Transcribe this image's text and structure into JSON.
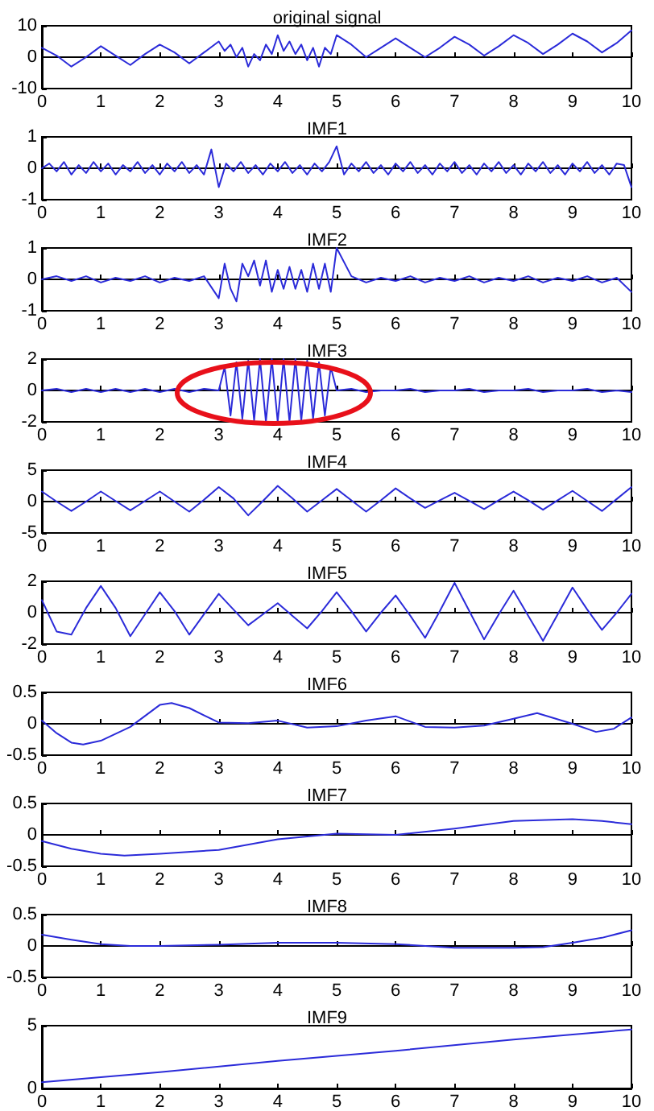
{
  "chart_data": [
    {
      "type": "line",
      "title": "original signal",
      "color": "#2b2bd9",
      "xlim": [
        0,
        10
      ],
      "xticks": [
        0,
        1,
        2,
        3,
        4,
        5,
        6,
        7,
        8,
        9,
        10
      ],
      "ylim": [
        -10,
        10
      ],
      "yticks": [
        -10,
        0,
        10
      ],
      "x": [
        0,
        0.25,
        0.5,
        0.75,
        1,
        1.25,
        1.5,
        1.75,
        2,
        2.25,
        2.5,
        2.75,
        3,
        3.1,
        3.2,
        3.3,
        3.4,
        3.5,
        3.6,
        3.7,
        3.8,
        3.9,
        4,
        4.1,
        4.2,
        4.3,
        4.4,
        4.5,
        4.6,
        4.7,
        4.8,
        4.9,
        5,
        5.25,
        5.5,
        5.75,
        6,
        6.25,
        6.5,
        6.75,
        7,
        7.25,
        7.5,
        7.75,
        8,
        8.25,
        8.5,
        8.75,
        9,
        9.25,
        9.5,
        9.75,
        10
      ],
      "values": [
        3,
        0.5,
        -3,
        0,
        3.5,
        0.5,
        -2.5,
        1,
        4,
        1.5,
        -2,
        1.5,
        5,
        2,
        4,
        0,
        3,
        -3,
        1,
        -1,
        4,
        1,
        7,
        2,
        5,
        1,
        4,
        -1,
        3,
        -3,
        3,
        1,
        7,
        4,
        0,
        3,
        6,
        3,
        0,
        3,
        6.5,
        4,
        0.5,
        3.5,
        7,
        4.5,
        1,
        4,
        7.5,
        5,
        1.5,
        4.5,
        8.5
      ]
    },
    {
      "type": "line",
      "title": "IMF1",
      "color": "#2b2bd9",
      "xlim": [
        0,
        10
      ],
      "xticks": [
        0,
        1,
        2,
        3,
        4,
        5,
        6,
        7,
        8,
        9,
        10
      ],
      "ylim": [
        -1,
        1
      ],
      "yticks": [
        -1,
        0,
        1
      ],
      "x": [
        0,
        0.125,
        0.25,
        0.375,
        0.5,
        0.625,
        0.75,
        0.875,
        1,
        1.125,
        1.25,
        1.375,
        1.5,
        1.625,
        1.75,
        1.875,
        2,
        2.125,
        2.25,
        2.375,
        2.5,
        2.625,
        2.75,
        2.875,
        3,
        3.125,
        3.25,
        3.375,
        3.5,
        3.625,
        3.75,
        3.875,
        4,
        4.125,
        4.25,
        4.375,
        4.5,
        4.625,
        4.75,
        4.875,
        5,
        5.125,
        5.25,
        5.375,
        5.5,
        5.625,
        5.75,
        5.875,
        6,
        6.125,
        6.25,
        6.375,
        6.5,
        6.625,
        6.75,
        6.875,
        7,
        7.125,
        7.25,
        7.375,
        7.5,
        7.625,
        7.75,
        7.875,
        8,
        8.125,
        8.25,
        8.375,
        8.5,
        8.625,
        8.75,
        8.875,
        9,
        9.125,
        9.25,
        9.375,
        9.5,
        9.625,
        9.75,
        9.875,
        10
      ],
      "values": [
        0,
        0.15,
        -0.1,
        0.2,
        -0.2,
        0.1,
        -0.15,
        0.2,
        -0.1,
        0.15,
        -0.2,
        0.1,
        -0.1,
        0.2,
        -0.15,
        0.1,
        -0.2,
        0.15,
        -0.1,
        0.2,
        -0.15,
        0.1,
        -0.2,
        0.6,
        -0.6,
        0.15,
        -0.1,
        0.2,
        -0.15,
        0.1,
        -0.2,
        0.15,
        -0.1,
        0.2,
        -0.15,
        0.1,
        -0.2,
        0.15,
        -0.1,
        0.2,
        0.7,
        -0.2,
        0.15,
        -0.1,
        0.2,
        -0.15,
        0.1,
        -0.2,
        0.15,
        -0.1,
        0.2,
        -0.15,
        0.1,
        -0.2,
        0.15,
        -0.1,
        0.2,
        -0.15,
        0.1,
        -0.2,
        0.15,
        -0.1,
        0.2,
        -0.15,
        0.1,
        -0.2,
        0.15,
        -0.1,
        0.2,
        -0.15,
        0.1,
        -0.2,
        0.15,
        -0.1,
        0.2,
        -0.15,
        0.1,
        -0.2,
        0.15,
        0.1,
        -0.6
      ]
    },
    {
      "type": "line",
      "title": "IMF2",
      "color": "#2b2bd9",
      "xlim": [
        0,
        10
      ],
      "xticks": [
        0,
        1,
        2,
        3,
        4,
        5,
        6,
        7,
        8,
        9,
        10
      ],
      "ylim": [
        -1,
        1
      ],
      "yticks": [
        -1,
        0,
        1
      ],
      "x": [
        0,
        0.25,
        0.5,
        0.75,
        1,
        1.25,
        1.5,
        1.75,
        2,
        2.25,
        2.5,
        2.75,
        3,
        3.1,
        3.2,
        3.3,
        3.4,
        3.5,
        3.6,
        3.7,
        3.8,
        3.9,
        4,
        4.1,
        4.2,
        4.3,
        4.4,
        4.5,
        4.6,
        4.7,
        4.8,
        4.9,
        5,
        5.25,
        5.5,
        5.75,
        6,
        6.25,
        6.5,
        6.75,
        7,
        7.25,
        7.5,
        7.75,
        8,
        8.25,
        8.5,
        8.75,
        9,
        9.25,
        9.5,
        9.75,
        10
      ],
      "values": [
        0,
        0.1,
        -0.05,
        0.1,
        -0.1,
        0.05,
        -0.05,
        0.1,
        -0.1,
        0.05,
        -0.05,
        0.1,
        -0.6,
        0.5,
        -0.3,
        -0.7,
        0.5,
        0.1,
        0.6,
        -0.2,
        0.6,
        -0.4,
        0.3,
        -0.3,
        0.4,
        -0.3,
        0.3,
        -0.4,
        0.5,
        -0.3,
        0.5,
        -0.4,
        1,
        0.1,
        -0.1,
        0.05,
        -0.05,
        0.1,
        -0.1,
        0.05,
        -0.05,
        0.1,
        -0.1,
        0.05,
        -0.05,
        0.1,
        -0.1,
        0.05,
        -0.05,
        0.1,
        -0.1,
        0.05,
        -0.4
      ]
    },
    {
      "type": "line",
      "title": "IMF3",
      "color": "#2b2bd9",
      "xlim": [
        0,
        10
      ],
      "xticks": [
        0,
        1,
        2,
        3,
        4,
        5,
        6,
        7,
        8,
        9,
        10
      ],
      "ylim": [
        -2,
        2
      ],
      "yticks": [
        -2,
        0,
        2
      ],
      "x": [
        0,
        0.25,
        0.5,
        0.75,
        1,
        1.25,
        1.5,
        1.75,
        2,
        2.25,
        2.5,
        2.75,
        3,
        3.1,
        3.2,
        3.3,
        3.4,
        3.5,
        3.6,
        3.7,
        3.8,
        3.9,
        4,
        4.1,
        4.2,
        4.3,
        4.4,
        4.5,
        4.6,
        4.7,
        4.8,
        4.9,
        5,
        5.25,
        5.5,
        5.75,
        6,
        6.25,
        6.5,
        6.75,
        7,
        7.25,
        7.5,
        7.75,
        8,
        8.25,
        8.5,
        8.75,
        9,
        9.25,
        9.5,
        9.75,
        10
      ],
      "values": [
        0,
        0.1,
        -0.1,
        0.1,
        -0.1,
        0.1,
        -0.1,
        0.1,
        -0.1,
        0.1,
        -0.1,
        0.1,
        0,
        1.5,
        -1.6,
        1.8,
        -1.8,
        1.9,
        -1.9,
        2,
        -2,
        2,
        -2,
        2,
        -2,
        2,
        -1.9,
        1.9,
        -1.8,
        1.8,
        -1.6,
        1.5,
        0,
        0.1,
        -0.1,
        0,
        0,
        0.1,
        -0.1,
        0,
        0,
        0.1,
        -0.1,
        0,
        0,
        0.1,
        -0.1,
        0,
        0,
        0.1,
        -0.1,
        0,
        -0.1
      ]
    },
    {
      "type": "line",
      "title": "IMF4",
      "color": "#2b2bd9",
      "xlim": [
        0,
        10
      ],
      "xticks": [
        0,
        1,
        2,
        3,
        4,
        5,
        6,
        7,
        8,
        9,
        10
      ],
      "ylim": [
        -5,
        5
      ],
      "yticks": [
        -5,
        0,
        5
      ],
      "x": [
        0,
        0.25,
        0.5,
        0.75,
        1,
        1.25,
        1.5,
        1.75,
        2,
        2.25,
        2.5,
        2.75,
        3,
        3.25,
        3.5,
        3.75,
        4,
        4.25,
        4.5,
        4.75,
        5,
        5.25,
        5.5,
        5.75,
        6,
        6.25,
        6.5,
        6.75,
        7,
        7.25,
        7.5,
        7.75,
        8,
        8.25,
        8.5,
        8.75,
        9,
        9.25,
        9.5,
        9.75,
        10
      ],
      "values": [
        1.6,
        0,
        -1.5,
        0,
        1.6,
        0.1,
        -1.4,
        0.1,
        1.6,
        0,
        -1.6,
        0.3,
        2.3,
        0.5,
        -2.2,
        0.1,
        2.5,
        0.5,
        -1.6,
        0.2,
        2,
        0.2,
        -1.6,
        0.2,
        2.1,
        0.5,
        -1,
        0.2,
        1.4,
        0.1,
        -1.2,
        0.2,
        1.6,
        0.2,
        -1.3,
        0.2,
        1.7,
        0.1,
        -1.5,
        0.4,
        2.3
      ]
    },
    {
      "type": "line",
      "title": "IMF5",
      "color": "#2b2bd9",
      "xlim": [
        0,
        10
      ],
      "xticks": [
        0,
        1,
        2,
        3,
        4,
        5,
        6,
        7,
        8,
        9,
        10
      ],
      "ylim": [
        -2,
        2
      ],
      "yticks": [
        -2,
        0,
        2
      ],
      "x": [
        0,
        0.25,
        0.5,
        0.75,
        1,
        1.25,
        1.5,
        1.75,
        2,
        2.25,
        2.5,
        2.75,
        3,
        3.25,
        3.5,
        3.75,
        4,
        4.25,
        4.5,
        4.75,
        5,
        5.25,
        5.5,
        5.75,
        6,
        6.25,
        6.5,
        6.75,
        7,
        7.25,
        7.5,
        7.75,
        8,
        8.25,
        8.5,
        8.75,
        9,
        9.25,
        9.5,
        9.75,
        10
      ],
      "values": [
        0.8,
        -1.2,
        -1.4,
        0.3,
        1.7,
        0.3,
        -1.5,
        -0.1,
        1.3,
        0.1,
        -1.4,
        -0.1,
        1.2,
        0.2,
        -0.8,
        -0.1,
        0.6,
        -0.2,
        -1,
        0.1,
        1.3,
        0.1,
        -1.2,
        0,
        1.1,
        -0.2,
        -1.6,
        0.1,
        1.9,
        0.1,
        -1.7,
        -0.1,
        1.4,
        -0.2,
        -1.8,
        -0.1,
        1.6,
        0.2,
        -1.1,
        0,
        1.2
      ]
    },
    {
      "type": "line",
      "title": "IMF6",
      "color": "#2b2bd9",
      "xlim": [
        0,
        10
      ],
      "xticks": [
        0,
        1,
        2,
        3,
        4,
        5,
        6,
        7,
        8,
        9,
        10
      ],
      "ylim": [
        -0.5,
        0.5
      ],
      "yticks": [
        -0.5,
        0,
        0.5
      ],
      "x": [
        0,
        0.25,
        0.5,
        0.7,
        1,
        1.5,
        2,
        2.2,
        2.5,
        3,
        3.5,
        4,
        4.5,
        5,
        5.5,
        6,
        6.5,
        7,
        7.5,
        8,
        8.4,
        9,
        9.4,
        9.7,
        10
      ],
      "values": [
        0.05,
        -0.15,
        -0.3,
        -0.33,
        -0.27,
        -0.05,
        0.3,
        0.33,
        0.25,
        0.02,
        0.01,
        0.05,
        -0.06,
        -0.04,
        0.05,
        0.12,
        -0.05,
        -0.06,
        -0.03,
        0.08,
        0.17,
        0,
        -0.13,
        -0.08,
        0.1
      ]
    },
    {
      "type": "line",
      "title": "IMF7",
      "color": "#2b2bd9",
      "xlim": [
        0,
        10
      ],
      "xticks": [
        0,
        1,
        2,
        3,
        4,
        5,
        6,
        7,
        8,
        9,
        10
      ],
      "ylim": [
        -0.5,
        0.5
      ],
      "yticks": [
        -0.5,
        0,
        0.5
      ],
      "x": [
        0,
        0.5,
        1,
        1.4,
        2,
        3,
        4,
        5,
        6,
        7,
        8,
        9,
        9.5,
        10
      ],
      "values": [
        -0.1,
        -0.22,
        -0.3,
        -0.33,
        -0.3,
        -0.24,
        -0.07,
        0.02,
        0,
        0.1,
        0.22,
        0.25,
        0.22,
        0.17
      ]
    },
    {
      "type": "line",
      "title": "IMF8",
      "color": "#2b2bd9",
      "xlim": [
        0,
        10
      ],
      "xticks": [
        0,
        1,
        2,
        3,
        4,
        5,
        6,
        7,
        8,
        9,
        10
      ],
      "ylim": [
        -0.5,
        0.5
      ],
      "yticks": [
        -0.5,
        0,
        0.5
      ],
      "x": [
        0,
        0.5,
        1,
        1.5,
        2,
        3,
        4,
        5,
        6,
        7,
        8,
        8.5,
        9,
        9.5,
        10
      ],
      "values": [
        0.18,
        0.1,
        0.03,
        0,
        0,
        0.02,
        0.05,
        0.05,
        0.03,
        -0.03,
        -0.03,
        -0.02,
        0.05,
        0.13,
        0.25
      ]
    },
    {
      "type": "line",
      "title": "IMF9",
      "color": "#2b2bd9",
      "xlim": [
        0,
        10
      ],
      "xticks": [
        0,
        1,
        2,
        3,
        4,
        5,
        6,
        7,
        8,
        9,
        10
      ],
      "ylim": [
        0,
        5
      ],
      "yticks": [
        0,
        5
      ],
      "x": [
        0,
        2,
        4,
        6,
        8,
        10
      ],
      "values": [
        0.5,
        1.3,
        2.2,
        3,
        3.9,
        4.7
      ]
    }
  ]
}
